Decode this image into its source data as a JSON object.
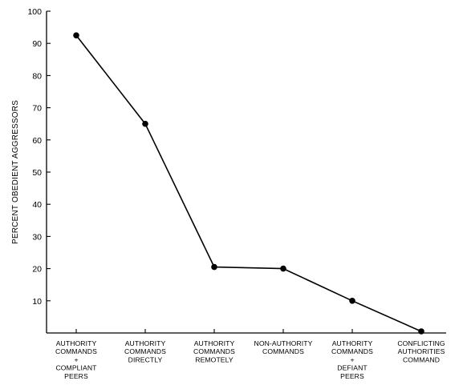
{
  "chart_data": {
    "type": "line",
    "title": "",
    "xlabel": "",
    "ylabel": "PERCENT OBEDIENT AGGRESSORS",
    "ylim": [
      0,
      100
    ],
    "yticks": [
      10,
      20,
      30,
      40,
      50,
      60,
      70,
      80,
      90,
      100
    ],
    "grid": false,
    "legend": "none",
    "categories": [
      [
        "AUTHORITY",
        "COMMANDS",
        "+",
        "COMPLIANT",
        "PEERS"
      ],
      [
        "AUTHORITY",
        "COMMANDS",
        "DIRECTLY"
      ],
      [
        "AUTHORITY",
        "COMMANDS",
        "REMOTELY"
      ],
      [
        "NON-AUTHORITY",
        "COMMANDS"
      ],
      [
        "AUTHORITY",
        "COMMANDS",
        "+",
        "DEFIANT",
        "PEERS"
      ],
      [
        "CONFLICTING",
        "AUTHORITIES",
        "COMMAND"
      ]
    ],
    "values": [
      92.5,
      65,
      20.5,
      20,
      10,
      0.5
    ],
    "colors": {
      "line": "#000000",
      "marker": "#000000",
      "axis": "#000000"
    }
  }
}
